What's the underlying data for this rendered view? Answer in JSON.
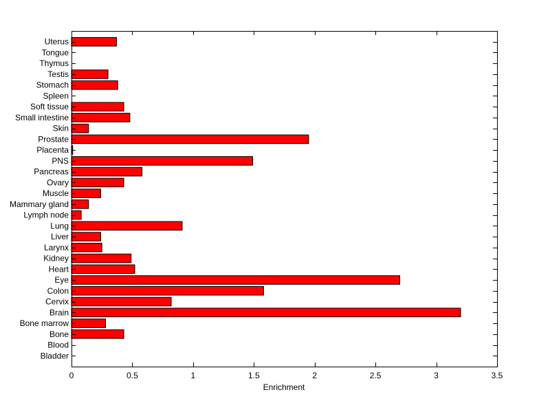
{
  "chart_data": {
    "type": "bar",
    "orientation": "horizontal",
    "title": "",
    "xlabel": "Enrichment",
    "ylabel": "",
    "xlim": [
      0,
      3.5
    ],
    "xticks": [
      0,
      0.5,
      1,
      1.5,
      2,
      2.5,
      3,
      3.5
    ],
    "xtick_labels": [
      "0",
      "0.5",
      "1",
      "1.5",
      "2",
      "2.5",
      "3",
      "3.5"
    ],
    "grid": false,
    "legend": "none",
    "bar_color": "#ff0000",
    "bar_edge_color": "#000000",
    "categories": [
      "Bladder",
      "Blood",
      "Bone",
      "Bone marrow",
      "Brain",
      "Cervix",
      "Colon",
      "Eye",
      "Heart",
      "Kidney",
      "Larynx",
      "Liver",
      "Lung",
      "Lymph node",
      "Mammary gland",
      "Muscle",
      "Ovary",
      "Pancreas",
      "PNS",
      "Placenta",
      "Prostate",
      "Skin",
      "Small intestine",
      "Soft tissue",
      "Spleen",
      "Stomach",
      "Testis",
      "Thymus",
      "Tongue",
      "Uterus"
    ],
    "values": [
      0,
      0,
      0.43,
      0.28,
      3.2,
      0.82,
      1.58,
      2.7,
      0.52,
      0.49,
      0.25,
      0.24,
      0.91,
      0.08,
      0.14,
      0.24,
      0.43,
      0.58,
      1.49,
      0.01,
      1.95,
      0.14,
      0.48,
      0.43,
      0,
      0.38,
      0.3,
      0,
      0,
      0.37
    ]
  }
}
